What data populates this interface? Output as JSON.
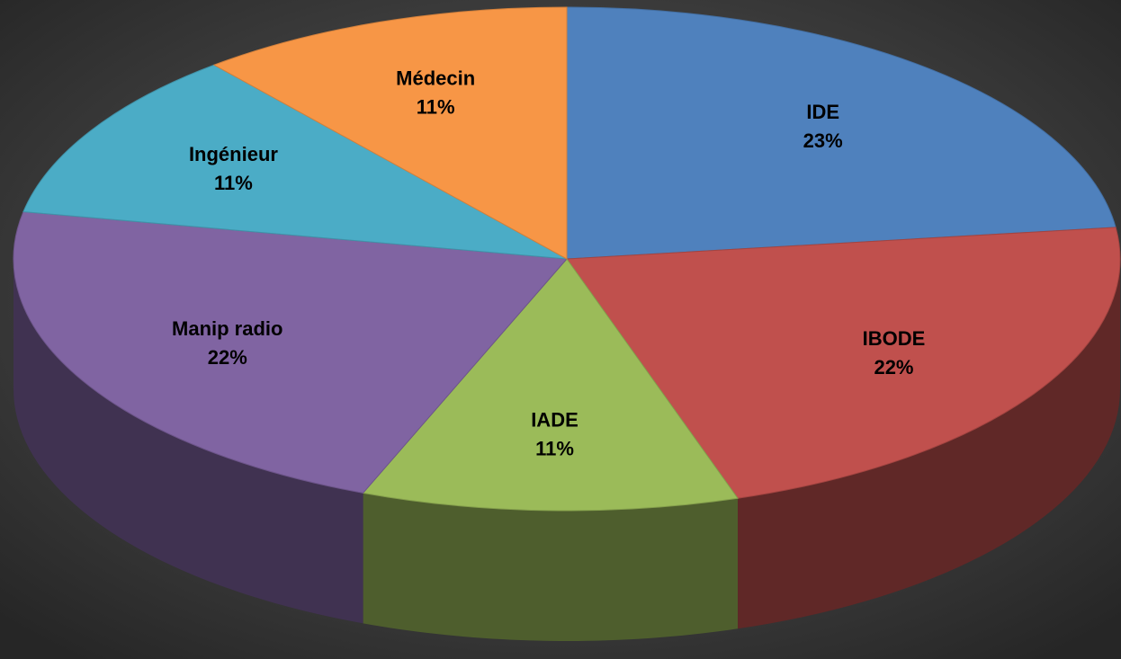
{
  "chart_data": {
    "type": "pie",
    "categories": [
      "IDE",
      "IBODE",
      "IADE",
      "Manip radio",
      "Ingénieur",
      "Médecin"
    ],
    "values": [
      23,
      22,
      11,
      22,
      11,
      11
    ],
    "value_labels": [
      "23%",
      "22%",
      "11%",
      "22%",
      "11%",
      "11%"
    ],
    "colors": [
      "#4f81bd",
      "#c0504d",
      "#9bbb59",
      "#8064a2",
      "#4bacc6",
      "#f79646"
    ]
  }
}
